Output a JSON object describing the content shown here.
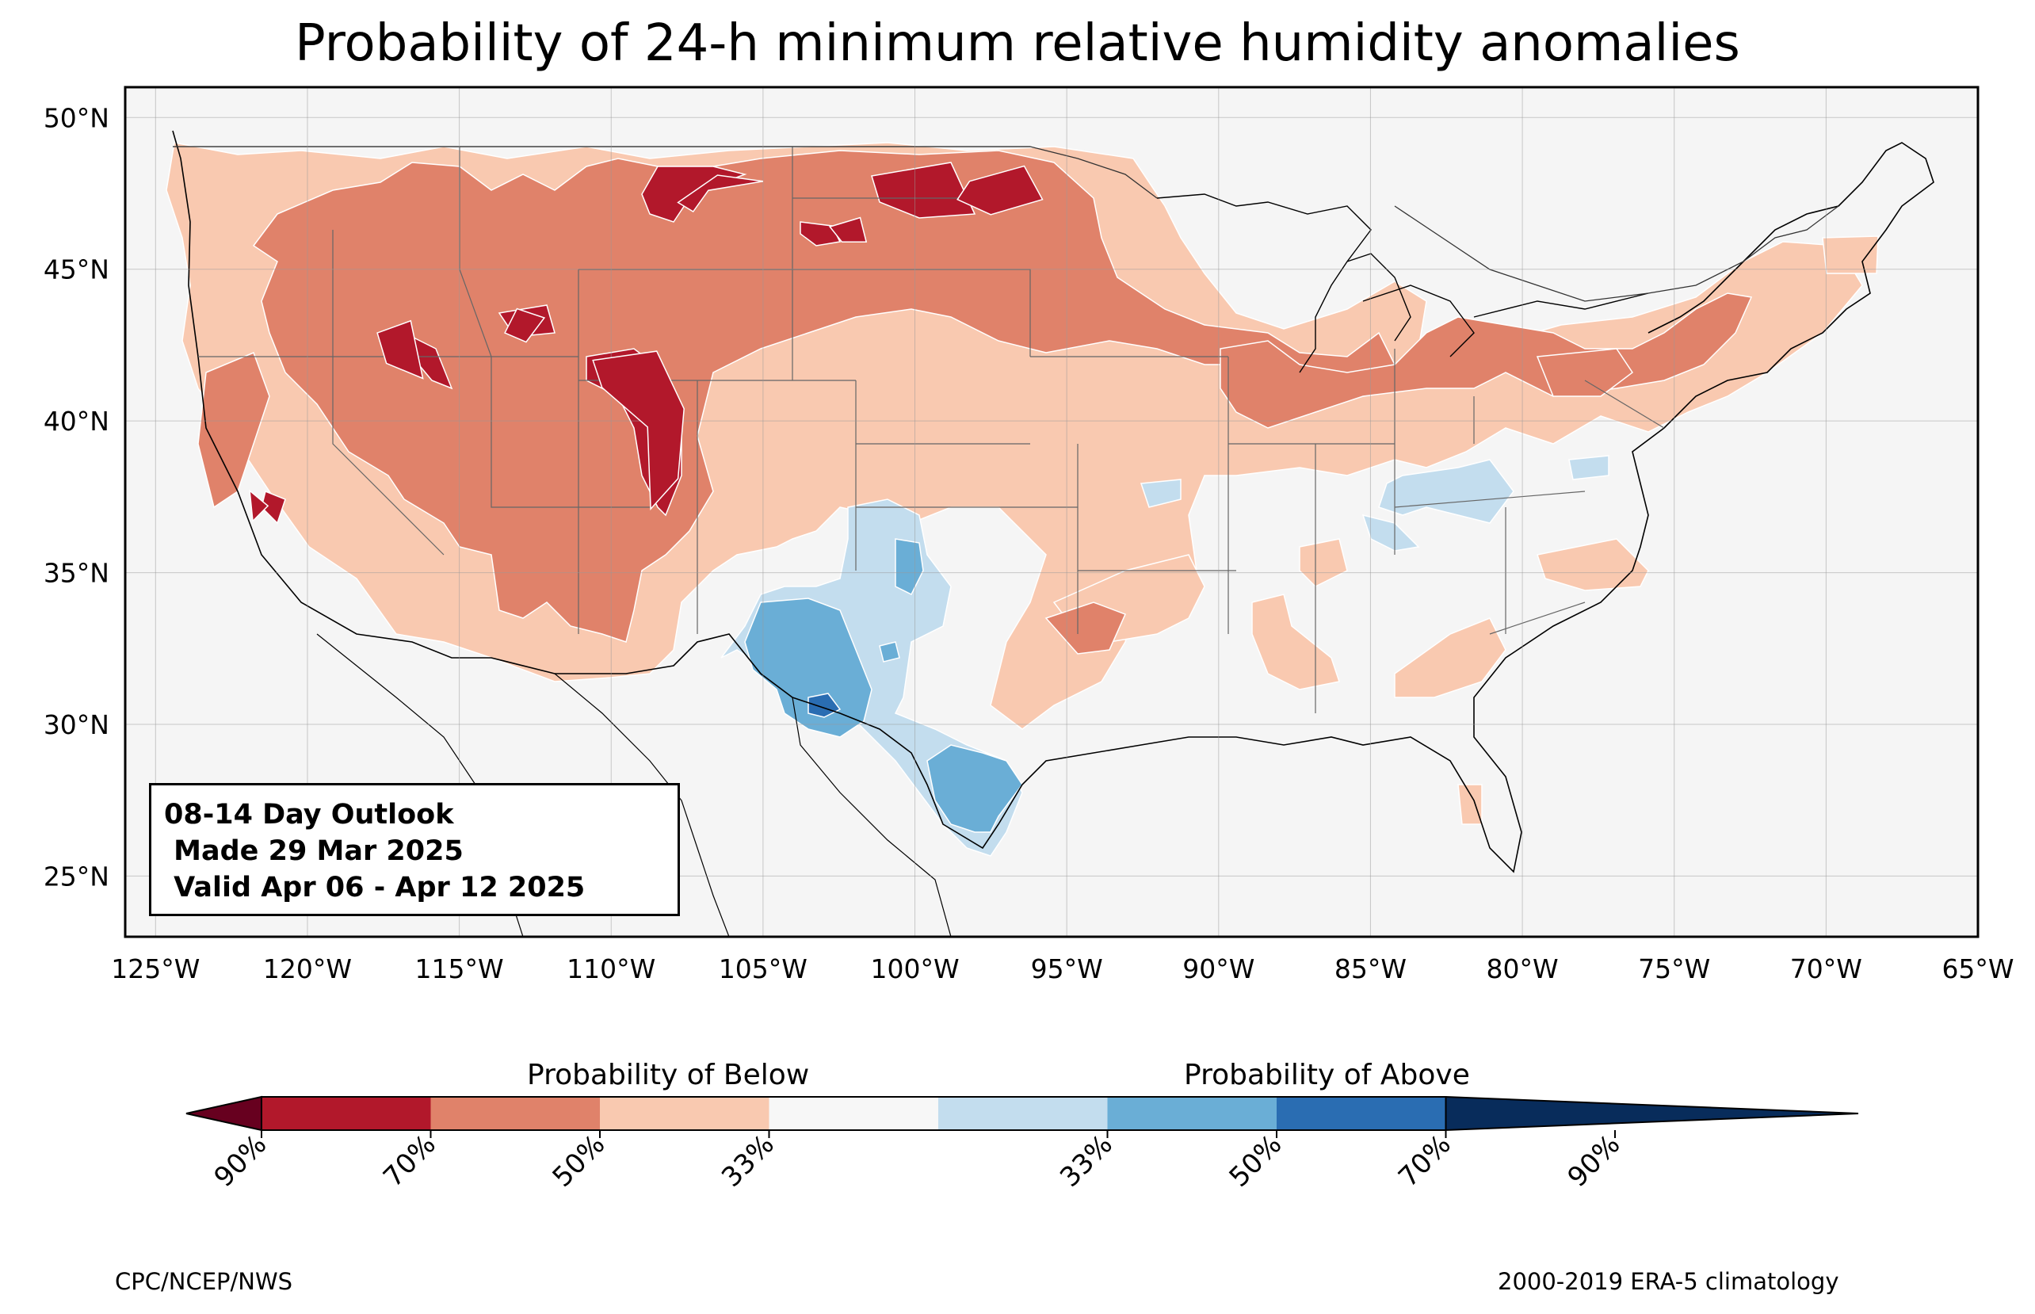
{
  "title": "Probability of 24-h minimum relative humidity anomalies",
  "map": {
    "projection": "PlateCarree",
    "extent": {
      "lon": [
        -126,
        -65
      ],
      "lat": [
        23,
        51
      ]
    },
    "background_color": "#f5f5f5",
    "lat_ticks": [
      {
        "value": 50,
        "label": "50°N"
      },
      {
        "value": 45,
        "label": "45°N"
      },
      {
        "value": 40,
        "label": "40°N"
      },
      {
        "value": 35,
        "label": "35°N"
      },
      {
        "value": 30,
        "label": "30°N"
      },
      {
        "value": 25,
        "label": "25°N"
      }
    ],
    "lon_ticks": [
      {
        "value": -125,
        "label": "125°W"
      },
      {
        "value": -120,
        "label": "120°W"
      },
      {
        "value": -115,
        "label": "115°W"
      },
      {
        "value": -110,
        "label": "110°W"
      },
      {
        "value": -105,
        "label": "105°W"
      },
      {
        "value": -100,
        "label": "100°W"
      },
      {
        "value": -95,
        "label": "95°W"
      },
      {
        "value": -90,
        "label": "90°W"
      },
      {
        "value": -85,
        "label": "85°W"
      },
      {
        "value": -80,
        "label": "80°W"
      },
      {
        "value": -75,
        "label": "75°W"
      },
      {
        "value": -70,
        "label": "70°W"
      },
      {
        "value": -65,
        "label": "65°W"
      }
    ],
    "gridlines": true
  },
  "outlook_box": {
    "line1": "08-14 Day Outlook",
    "line2": " Made 29 Mar 2025",
    "line3": " Valid Apr 06 - Apr 12 2025"
  },
  "colorbar": {
    "heading_below": "Probability of Below",
    "heading_above": "Probability of Above",
    "colors": [
      "#67001f",
      "#b2182b",
      "#d6604d",
      "#f4a582",
      "#f7f7f7",
      "#d1e5f0",
      "#92c5de",
      "#4393c3",
      "#2166ac",
      "#053061"
    ],
    "bins": [
      "#b2182b",
      "#e0826a",
      "#f9c9b0",
      "#f7f7f7",
      "#c3ddee",
      "#6aaed6",
      "#2a6db2"
    ],
    "extend_low_color": "#67001f",
    "extend_high_color": "#082c5b",
    "tick_labels": [
      "90%",
      "70%",
      "50%",
      "33%",
      "33%",
      "50%",
      "70%",
      "90%"
    ]
  },
  "credits": {
    "left": "CPC/NCEP/NWS",
    "right": "2000-2019 ERA-5 climatology"
  },
  "regions": [
    {
      "category": "below-70",
      "color": "#b2182b",
      "lonlat": [
        [
          -107.8,
          47.2
        ],
        [
          -106.5,
          48.1
        ],
        [
          -105,
          47.9
        ],
        [
          -106.8,
          47.6
        ],
        [
          -107.3,
          46.9
        ]
      ]
    },
    {
      "category": "below-70",
      "color": "#b2182b",
      "lonlat": [
        [
          -98.2,
          47.9
        ],
        [
          -96.4,
          48.4
        ],
        [
          -95.8,
          47.3
        ],
        [
          -97.5,
          46.8
        ],
        [
          -98.6,
          47.3
        ]
      ]
    },
    {
      "category": "below-70",
      "color": "#b2182b",
      "lonlat": [
        [
          -110.6,
          42
        ],
        [
          -108.5,
          42.3
        ],
        [
          -107.6,
          40.4
        ],
        [
          -107.8,
          38.1
        ],
        [
          -108.7,
          37.1
        ],
        [
          -108.8,
          39.8
        ],
        [
          -110.3,
          41.1
        ]
      ]
    },
    {
      "category": "below-70",
      "color": "#b2182b",
      "lonlat": [
        [
          -113.5,
          42.9
        ],
        [
          -112.8,
          42.6
        ],
        [
          -112.2,
          43.4
        ],
        [
          -113.1,
          43.7
        ]
      ]
    },
    {
      "category": "below-70",
      "color": "#b2182b",
      "lonlat": [
        [
          -117.7,
          42.9
        ],
        [
          -116.6,
          43.3
        ],
        [
          -116.2,
          41.4
        ],
        [
          -117.4,
          41.9
        ]
      ]
    },
    {
      "category": "below-70",
      "color": "#b2182b",
      "lonlat": [
        [
          -121.9,
          37.7
        ],
        [
          -121.3,
          37.2
        ],
        [
          -121.8,
          36.7
        ]
      ]
    },
    {
      "category": "below-70",
      "color": "#b2182b",
      "lonlat": [
        [
          -102.8,
          46.4
        ],
        [
          -101.8,
          46.7
        ],
        [
          -101.6,
          45.9
        ],
        [
          -102.4,
          45.9
        ]
      ]
    }
  ]
}
